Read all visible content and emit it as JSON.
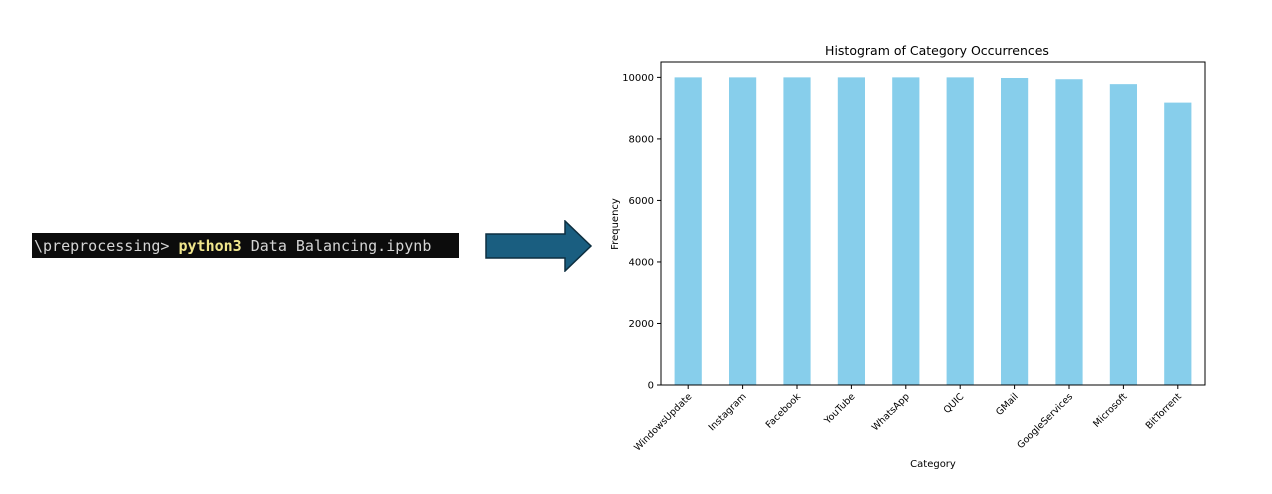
{
  "terminal": {
    "prompt": "\\preprocessing> ",
    "command": "python3",
    "args": " Data Balancing.ipynb"
  },
  "chart_data": {
    "type": "bar",
    "title": "Histogram of Category Occurrences",
    "xlabel": "Category",
    "ylabel": "Frequency",
    "categories": [
      "WindowsUpdate",
      "Instagram",
      "Facebook",
      "YouTube",
      "WhatsApp",
      "QUIC",
      "GMail",
      "GoogleServices",
      "Microsoft",
      "BitTorrent"
    ],
    "values": [
      10000,
      10000,
      10000,
      10000,
      10000,
      10000,
      9980,
      9940,
      9780,
      9180
    ],
    "ylim": [
      0,
      10500
    ],
    "yticks": [
      0,
      2000,
      4000,
      6000,
      8000,
      10000
    ],
    "bar_color": "#87ceeb",
    "grid": false,
    "legend": "none"
  },
  "colors": {
    "terminal_bg": "#0c0c0c",
    "terminal_text": "#d4d4d4",
    "terminal_command": "#f0e68c",
    "arrow_fill": "#1a5e80",
    "arrow_stroke": "#0d2f40"
  }
}
